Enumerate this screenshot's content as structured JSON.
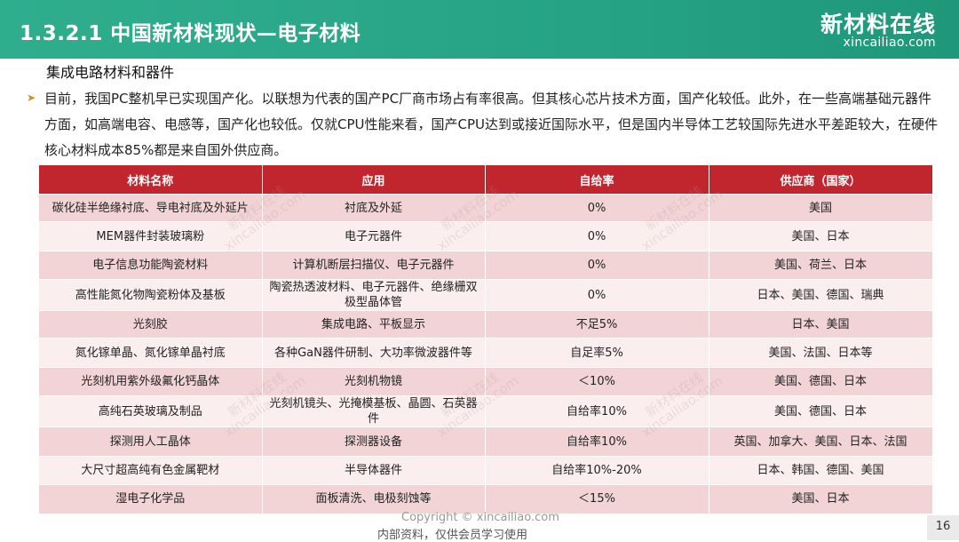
{
  "header": {
    "title": "1.3.2.1 中国新材料现状—电子材料",
    "logo_cn": "新材料在线",
    "logo_en": "xincailiao.com"
  },
  "subtitle": "集成电路材料和器件",
  "paragraph": "目前，我国PC整机早已实现国产化。以联想为代表的国产PC厂商市场占有率很高。但其核心芯片技术方面，国产化较低。此外，在一些高端基础元器件方面，如高端电容、电感等，国产化也较低。仅就CPU性能来看，国产CPU达到或接近国际水平，但是国内半导体工艺较国际先进水平差距较大，在硬件核心材料成本85%都是来自国外供应商。",
  "table": {
    "headers": [
      "材料名称",
      "应用",
      "自给率",
      "供应商（国家）"
    ],
    "rows": [
      [
        "碳化硅半绝缘衬底、导电衬底及外延片",
        "衬底及外延",
        "0%",
        "美国"
      ],
      [
        "MEM器件封装玻璃粉",
        "电子元器件",
        "0%",
        "美国、日本"
      ],
      [
        "电子信息功能陶瓷材料",
        "计算机断层扫描仪、电子元器件",
        "0%",
        "美国、荷兰、日本"
      ],
      [
        "高性能氮化物陶瓷粉体及基板",
        "陶瓷热透波材料、电子元器件、绝缘栅双极型晶体管",
        "0%",
        "日本、美国、德国、瑞典"
      ],
      [
        "光刻胶",
        "集成电路、平板显示",
        "不足5%",
        "日本、美国"
      ],
      [
        "氮化镓单晶、氮化镓单晶衬底",
        "各种GaN器件研制、大功率微波器件等",
        "自足率5%",
        "美国、法国、日本等"
      ],
      [
        "光刻机用紫外级氟化钙晶体",
        "光刻机物镜",
        "＜10%",
        "美国、德国、日本"
      ],
      [
        "高纯石英玻璃及制品",
        "光刻机镜头、光掩模基板、晶圆、石英器件",
        "自给率10%",
        "美国、德国、日本"
      ],
      [
        "探测用人工晶体",
        "探测器设备",
        "自给率10%",
        "英国、加拿大、美国、日本、法国"
      ],
      [
        "大尺寸超高纯有色金属靶材",
        "半导体器件",
        "自给率10%-20%",
        "日本、韩国、德国、美国"
      ],
      [
        "湿电子化学品",
        "面板清洗、电极刻蚀等",
        "＜15%",
        "美国、日本"
      ]
    ]
  },
  "watermark": "新材料在线\nxincailiao.com",
  "footer": {
    "copyright": "Copyright © xincailiao.com",
    "note": "内部资料，仅供会员学习使用",
    "page": "16"
  }
}
